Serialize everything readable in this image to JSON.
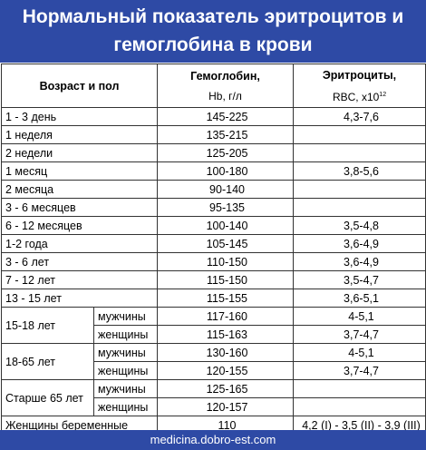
{
  "title": {
    "line1": "Нормальный показатель эритроцитов и",
    "line2": "гемоглобина в крови"
  },
  "headers": {
    "age_sex": "Возраст и пол",
    "hb_title": "Гемоглобин,",
    "hb_unit": "Hb, г/л",
    "rbc_title": "Эритроциты,",
    "rbc_unit": "RBC, x10",
    "rbc_exp": "12"
  },
  "rows": [
    {
      "label": "1 - 3 день",
      "hb": "145-225",
      "rbc": "4,3-7,6"
    },
    {
      "label": "1 неделя",
      "hb": "135-215",
      "rbc": ""
    },
    {
      "label": "2 недели",
      "hb": "125-205",
      "rbc": ""
    },
    {
      "label": "1 месяц",
      "hb": "100-180",
      "rbc": "3,8-5,6"
    },
    {
      "label": "2 месяца",
      "hb": "90-140",
      "rbc": ""
    },
    {
      "label": "3 - 6 месяцев",
      "hb": "95-135",
      "rbc": ""
    },
    {
      "label": "6 - 12 месяцев",
      "hb": "100-140",
      "rbc": "3,5-4,8"
    },
    {
      "label": "1-2 года",
      "hb": "105-145",
      "rbc": "3,6-4,9"
    },
    {
      "label": "3 - 6 лет",
      "hb": "110-150",
      "rbc": "3,6-4,9"
    },
    {
      "label": "7 - 12 лет",
      "hb": "115-150",
      "rbc": "3,5-4,7"
    },
    {
      "label": "13 - 15 лет",
      "hb": "115-155",
      "rbc": "3,6-5,1"
    }
  ],
  "groups": [
    {
      "label": "15-18 лет",
      "male": {
        "sex": "мужчины",
        "hb": "117-160",
        "rbc": "4-5,1"
      },
      "female": {
        "sex": "женщины",
        "hb": "115-163",
        "rbc": "3,7-4,7"
      }
    },
    {
      "label": "18-65 лет",
      "male": {
        "sex": "мужчины",
        "hb": "130-160",
        "rbc": "4-5,1"
      },
      "female": {
        "sex": "женщины",
        "hb": "120-155",
        "rbc": "3,7-4,7"
      }
    },
    {
      "label": "Старше 65 лет",
      "male": {
        "sex": "мужчины",
        "hb": "125-165",
        "rbc": ""
      },
      "female": {
        "sex": "женщины",
        "hb": "120-157",
        "rbc": ""
      }
    }
  ],
  "pregnant": {
    "label": "Женщины беременные",
    "hb": "110",
    "rbc": "4,2 (I) - 3,5 (II) - 3,9 (III)"
  },
  "footer": "medicina.dobro-est.com",
  "colors": {
    "banner": "#2e4aa5",
    "banner_text": "#ffffff"
  }
}
